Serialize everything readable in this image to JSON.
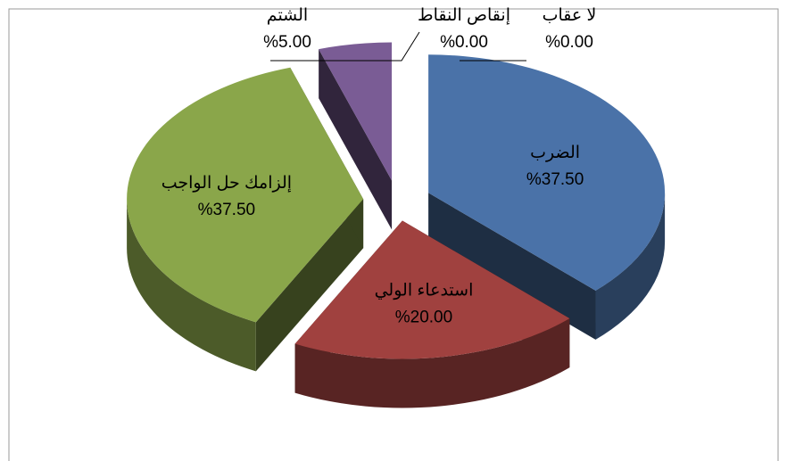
{
  "chart_data": {
    "type": "pie3d",
    "categories": [
      "الضرب",
      "استدعاء الولي",
      "إلزامك حل الواجب",
      "الشتم",
      "إنقاص النقاط",
      "لا عقاب"
    ],
    "values": [
      37.5,
      20,
      37.5,
      5,
      0,
      0
    ],
    "value_labels": [
      "%37.50",
      "%20.00",
      "%37.50",
      "%5.00",
      "%0.00",
      "%0.00"
    ],
    "colors": [
      "#4a72a8",
      "#a0413f",
      "#8aa64a",
      "#7a5c95",
      "#c0504d",
      "#4f81bd"
    ]
  }
}
